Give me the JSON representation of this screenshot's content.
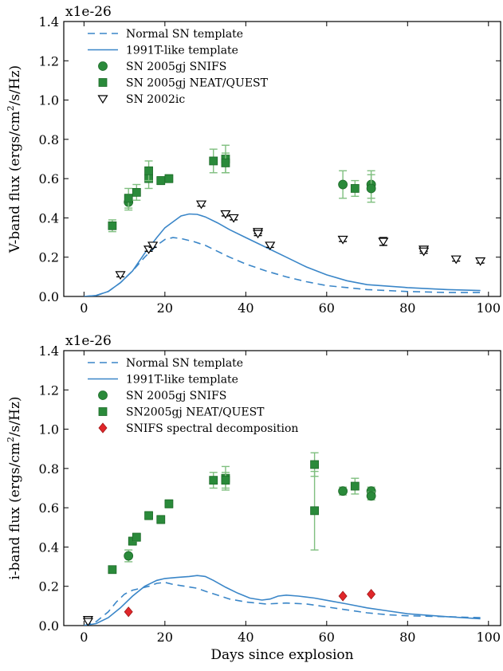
{
  "chart_data": [
    {
      "type": "scatter",
      "panel": "top",
      "multiplier": "x1e-26",
      "xlabel": "",
      "ylabel": "V-band flux (ergs/cm²/s/Hz)",
      "ylabel_main": "V-band flux (ergs/cm",
      "ylabel_sup": "2",
      "ylabel_tail": "/s/Hz)",
      "xlim": [
        -5,
        103
      ],
      "ylim": [
        0,
        1.4
      ],
      "xticks": [
        0,
        20,
        40,
        60,
        80,
        100
      ],
      "yticks": [
        0.0,
        0.2,
        0.4,
        0.6,
        0.8,
        1.0,
        1.2,
        1.4
      ],
      "ytick_labels": [
        "0.0",
        "0.2",
        "0.4",
        "0.6",
        "0.8",
        "1.0",
        "1.2",
        "1.4"
      ],
      "legend_position": "top-left",
      "colors": {
        "line": "#3a86c8",
        "green": "#2a8a3a",
        "errorbar": "#7fbf7f",
        "red": "#e0262a"
      },
      "series": [
        {
          "name": "Normal SN template",
          "style": "dashed-line",
          "points": [
            [
              0,
              0
            ],
            [
              3,
              0.005
            ],
            [
              6,
              0.025
            ],
            [
              9,
              0.07
            ],
            [
              12,
              0.13
            ],
            [
              15,
              0.2
            ],
            [
              18,
              0.26
            ],
            [
              20,
              0.29
            ],
            [
              22,
              0.3
            ],
            [
              24,
              0.295
            ],
            [
              27,
              0.28
            ],
            [
              30,
              0.26
            ],
            [
              33,
              0.23
            ],
            [
              36,
              0.2
            ],
            [
              40,
              0.165
            ],
            [
              45,
              0.13
            ],
            [
              50,
              0.1
            ],
            [
              55,
              0.075
            ],
            [
              60,
              0.055
            ],
            [
              70,
              0.035
            ],
            [
              80,
              0.025
            ],
            [
              90,
              0.02
            ],
            [
              98,
              0.02
            ]
          ]
        },
        {
          "name": "1991T-like template",
          "style": "solid-line",
          "points": [
            [
              0,
              0
            ],
            [
              3,
              0.005
            ],
            [
              6,
              0.025
            ],
            [
              9,
              0.07
            ],
            [
              12,
              0.13
            ],
            [
              15,
              0.22
            ],
            [
              18,
              0.3
            ],
            [
              20,
              0.35
            ],
            [
              22,
              0.38
            ],
            [
              24,
              0.41
            ],
            [
              26,
              0.42
            ],
            [
              28,
              0.418
            ],
            [
              30,
              0.405
            ],
            [
              33,
              0.375
            ],
            [
              36,
              0.34
            ],
            [
              40,
              0.3
            ],
            [
              45,
              0.25
            ],
            [
              50,
              0.2
            ],
            [
              55,
              0.15
            ],
            [
              60,
              0.11
            ],
            [
              65,
              0.08
            ],
            [
              70,
              0.06
            ],
            [
              80,
              0.045
            ],
            [
              90,
              0.035
            ],
            [
              98,
              0.03
            ]
          ]
        },
        {
          "name": "SN 2005gj SNIFS",
          "style": "circle",
          "points": [
            [
              11,
              0.48
            ],
            [
              64,
              0.57
            ],
            [
              71,
              0.57
            ],
            [
              71,
              0.55
            ]
          ],
          "errors": [
            0.04,
            0.07,
            0.07,
            0.07
          ]
        },
        {
          "name": "SN 2005gj NEAT/QUEST",
          "style": "square",
          "points": [
            [
              7,
              0.36
            ],
            [
              11,
              0.5
            ],
            [
              13,
              0.53
            ],
            [
              16,
              0.6
            ],
            [
              16,
              0.64
            ],
            [
              19,
              0.59
            ],
            [
              21,
              0.6
            ],
            [
              32,
              0.69
            ],
            [
              35,
              0.7
            ],
            [
              35,
              0.68
            ],
            [
              67,
              0.55
            ]
          ],
          "errors": [
            0.03,
            0.05,
            0.04,
            0.05,
            0.05,
            0.02,
            0.02,
            0.06,
            0.07,
            0.05,
            0.04
          ]
        },
        {
          "name": "SN 2002ic",
          "style": "open-triangle",
          "points": [
            [
              9,
              0.11
            ],
            [
              16,
              0.24
            ],
            [
              17,
              0.26
            ],
            [
              29,
              0.47
            ],
            [
              35,
              0.42
            ],
            [
              37,
              0.4
            ],
            [
              43,
              0.33
            ],
            [
              43,
              0.32
            ],
            [
              46,
              0.26
            ],
            [
              64,
              0.29
            ],
            [
              74,
              0.28
            ],
            [
              84,
              0.24
            ],
            [
              84,
              0.23
            ],
            [
              92,
              0.19
            ],
            [
              98,
              0.18
            ]
          ],
          "errors": [
            0.01,
            0.01,
            0.01,
            0.01,
            0.01,
            0.01,
            0.01,
            0.01,
            0.01,
            0.01,
            0.02,
            0.01,
            0.01,
            0.01,
            0.01
          ]
        }
      ]
    },
    {
      "type": "scatter",
      "panel": "bottom",
      "multiplier": "x1e-26",
      "xlabel": "Days since explosion",
      "ylabel": "i-band flux (ergs/cm²/s/Hz)",
      "ylabel_main": "i-band flux (ergs/cm",
      "ylabel_sup": "2",
      "ylabel_tail": "/s/Hz)",
      "xlim": [
        -5,
        103
      ],
      "ylim": [
        0,
        1.4
      ],
      "xticks": [
        0,
        20,
        40,
        60,
        80,
        100
      ],
      "yticks": [
        0.0,
        0.2,
        0.4,
        0.6,
        0.8,
        1.0,
        1.2,
        1.4
      ],
      "ytick_labels": [
        "0.0",
        "0.2",
        "0.4",
        "0.6",
        "0.8",
        "1.0",
        "1.2",
        "1.4"
      ],
      "legend_position": "top-left",
      "colors": {
        "line": "#3a86c8",
        "green": "#2a8a3a",
        "errorbar": "#7fbf7f",
        "red": "#e0262a"
      },
      "series": [
        {
          "name": "Normal SN template",
          "style": "dashed-line",
          "points": [
            [
              0,
              0
            ],
            [
              3,
              0.02
            ],
            [
              6,
              0.07
            ],
            [
              8,
              0.12
            ],
            [
              10,
              0.16
            ],
            [
              12,
              0.18
            ],
            [
              14,
              0.19
            ],
            [
              16,
              0.2
            ],
            [
              18,
              0.215
            ],
            [
              20,
              0.22
            ],
            [
              22,
              0.21
            ],
            [
              25,
              0.2
            ],
            [
              28,
              0.19
            ],
            [
              30,
              0.175
            ],
            [
              33,
              0.155
            ],
            [
              36,
              0.135
            ],
            [
              40,
              0.12
            ],
            [
              45,
              0.11
            ],
            [
              50,
              0.115
            ],
            [
              55,
              0.11
            ],
            [
              60,
              0.095
            ],
            [
              65,
              0.08
            ],
            [
              70,
              0.065
            ],
            [
              75,
              0.055
            ],
            [
              80,
              0.05
            ],
            [
              90,
              0.045
            ],
            [
              98,
              0.04
            ]
          ]
        },
        {
          "name": "1991T-like template",
          "style": "solid-line",
          "points": [
            [
              0,
              0
            ],
            [
              3,
              0.01
            ],
            [
              6,
              0.04
            ],
            [
              9,
              0.09
            ],
            [
              12,
              0.15
            ],
            [
              15,
              0.2
            ],
            [
              18,
              0.23
            ],
            [
              20,
              0.24
            ],
            [
              23,
              0.245
            ],
            [
              26,
              0.25
            ],
            [
              28,
              0.255
            ],
            [
              30,
              0.25
            ],
            [
              32,
              0.23
            ],
            [
              35,
              0.195
            ],
            [
              38,
              0.165
            ],
            [
              41,
              0.14
            ],
            [
              44,
              0.13
            ],
            [
              46,
              0.135
            ],
            [
              48,
              0.15
            ],
            [
              50,
              0.155
            ],
            [
              53,
              0.15
            ],
            [
              57,
              0.14
            ],
            [
              61,
              0.125
            ],
            [
              65,
              0.11
            ],
            [
              70,
              0.09
            ],
            [
              75,
              0.075
            ],
            [
              80,
              0.06
            ],
            [
              90,
              0.045
            ],
            [
              98,
              0.035
            ]
          ]
        },
        {
          "name": "SN 2005gj SNIFS",
          "style": "circle",
          "points": [
            [
              11,
              0.355
            ],
            [
              64,
              0.685
            ],
            [
              71,
              0.685
            ],
            [
              71,
              0.66
            ]
          ],
          "errors": [
            0.03,
            0.02,
            0.02,
            0.02
          ]
        },
        {
          "name": "SN2005gj NEAT/QUEST",
          "style": "square",
          "points": [
            [
              7,
              0.285
            ],
            [
              12,
              0.43
            ],
            [
              13,
              0.45
            ],
            [
              16,
              0.56
            ],
            [
              19,
              0.54
            ],
            [
              21,
              0.62
            ],
            [
              32,
              0.74
            ],
            [
              35,
              0.75
            ],
            [
              35,
              0.74
            ],
            [
              57,
              0.82
            ],
            [
              57,
              0.585
            ],
            [
              67,
              0.71
            ]
          ],
          "errors": [
            0.01,
            0.02,
            0.02,
            0.02,
            0.02,
            0.02,
            0.04,
            0.06,
            0.04,
            0.06,
            0.2,
            0.04
          ]
        },
        {
          "name": "SNIFS spectral decomposition",
          "style": "diamond",
          "points": [
            [
              11,
              0.07
            ],
            [
              64,
              0.15
            ],
            [
              71,
              0.16
            ]
          ],
          "errors": [
            0,
            0,
            0
          ]
        },
        {
          "name": "",
          "style": "open-triangle-nolegend",
          "points": [
            [
              1,
              0.03
            ],
            [
              1,
              0.02
            ]
          ],
          "errors": [
            0,
            0
          ]
        }
      ]
    }
  ]
}
